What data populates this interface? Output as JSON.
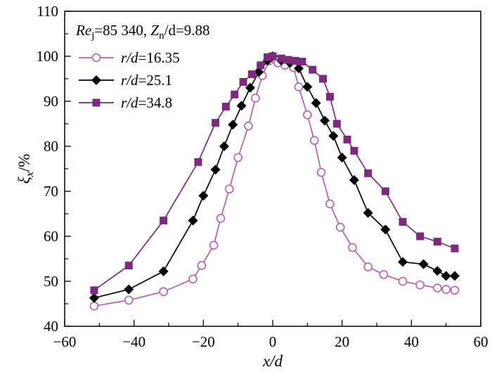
{
  "chart_data": {
    "type": "line",
    "annotation": {
      "re": "Re",
      "re_sub": "j",
      "re_rest": "=85 340, ",
      "z": "Z",
      "z_sub": "n",
      "z_rest": "/d=9.88"
    },
    "xlabel": "x/d",
    "ylabel_main": "ξ",
    "ylabel_sub": "x",
    "ylabel_unit": "/%",
    "xlim": [
      -60,
      60
    ],
    "ylim": [
      40,
      110
    ],
    "xticks": [
      -60,
      -40,
      -20,
      0,
      20,
      40,
      60
    ],
    "yticks": [
      40,
      50,
      60,
      70,
      80,
      90,
      100,
      110
    ],
    "legend_position": "top-left",
    "series": [
      {
        "name": "r/d=16.35",
        "color": "#b35fae",
        "marker": "open-circle",
        "points": [
          [
            -51.5,
            44.5
          ],
          [
            -41.5,
            45.8
          ],
          [
            -31.5,
            47.7
          ],
          [
            -23.0,
            50.5
          ],
          [
            -20.5,
            53.5
          ],
          [
            -17.0,
            58.0
          ],
          [
            -15.0,
            64.0
          ],
          [
            -12.5,
            70.5
          ],
          [
            -10.0,
            77.5
          ],
          [
            -7.0,
            84.5
          ],
          [
            -5.0,
            90.7
          ],
          [
            -3.0,
            95.7
          ],
          [
            -1.0,
            99.0
          ],
          [
            0.5,
            99.5
          ],
          [
            1.5,
            98.5
          ],
          [
            3.5,
            98.0
          ],
          [
            6.0,
            97.5
          ],
          [
            7.5,
            93.2
          ],
          [
            10.0,
            87.0
          ],
          [
            12.0,
            81.3
          ],
          [
            14.0,
            74.2
          ],
          [
            16.5,
            67.2
          ],
          [
            19.5,
            62.0
          ],
          [
            23.0,
            57.5
          ],
          [
            27.5,
            53.2
          ],
          [
            32.0,
            51.5
          ],
          [
            37.5,
            50.0
          ],
          [
            42.5,
            49.2
          ],
          [
            47.5,
            48.5
          ],
          [
            50.0,
            48.2
          ],
          [
            52.5,
            48.0
          ]
        ]
      },
      {
        "name": "r/d=25.1",
        "color": "#000000",
        "marker": "filled-diamond",
        "points": [
          [
            -51.5,
            46.3
          ],
          [
            -41.5,
            48.2
          ],
          [
            -31.5,
            52.2
          ],
          [
            -23.0,
            63.5
          ],
          [
            -20.0,
            69.0
          ],
          [
            -16.5,
            74.8
          ],
          [
            -14.0,
            80.0
          ],
          [
            -11.5,
            84.8
          ],
          [
            -9.0,
            89.0
          ],
          [
            -6.5,
            93.0
          ],
          [
            -4.0,
            96.5
          ],
          [
            -1.5,
            99.0
          ],
          [
            0.0,
            100.0
          ],
          [
            2.5,
            99.0
          ],
          [
            5.0,
            98.5
          ],
          [
            7.5,
            97.3
          ],
          [
            10.0,
            93.2
          ],
          [
            12.5,
            89.6
          ],
          [
            15.0,
            85.7
          ],
          [
            17.5,
            82.3
          ],
          [
            20.0,
            77.5
          ],
          [
            23.5,
            72.5
          ],
          [
            27.5,
            65.2
          ],
          [
            32.5,
            61.5
          ],
          [
            37.5,
            54.3
          ],
          [
            43.5,
            53.8
          ],
          [
            47.5,
            52.3
          ],
          [
            50.0,
            51.2
          ],
          [
            52.5,
            51.2
          ]
        ]
      },
      {
        "name": "r/d=34.8",
        "color": "#7b2a7e",
        "marker": "filled-square",
        "points": [
          [
            -51.5,
            48.0
          ],
          [
            -41.5,
            53.5
          ],
          [
            -31.5,
            63.5
          ],
          [
            -21.5,
            76.5
          ],
          [
            -16.5,
            85.2
          ],
          [
            -13.5,
            88.8
          ],
          [
            -11.0,
            91.5
          ],
          [
            -8.5,
            94.3
          ],
          [
            -6.0,
            96.0
          ],
          [
            -3.5,
            98.0
          ],
          [
            -1.5,
            99.8
          ],
          [
            0.0,
            100.0
          ],
          [
            2.5,
            99.5
          ],
          [
            4.5,
            99.2
          ],
          [
            6.5,
            99.0
          ],
          [
            8.5,
            98.8
          ],
          [
            11.5,
            97.0
          ],
          [
            14.5,
            95.0
          ],
          [
            16.5,
            91.0
          ],
          [
            18.5,
            85.0
          ],
          [
            21.5,
            81.5
          ],
          [
            23.5,
            79.0
          ],
          [
            27.5,
            74.0
          ],
          [
            32.5,
            70.0
          ],
          [
            37.5,
            63.2
          ],
          [
            42.5,
            60.0
          ],
          [
            47.5,
            58.8
          ],
          [
            52.5,
            57.3
          ]
        ]
      }
    ]
  }
}
